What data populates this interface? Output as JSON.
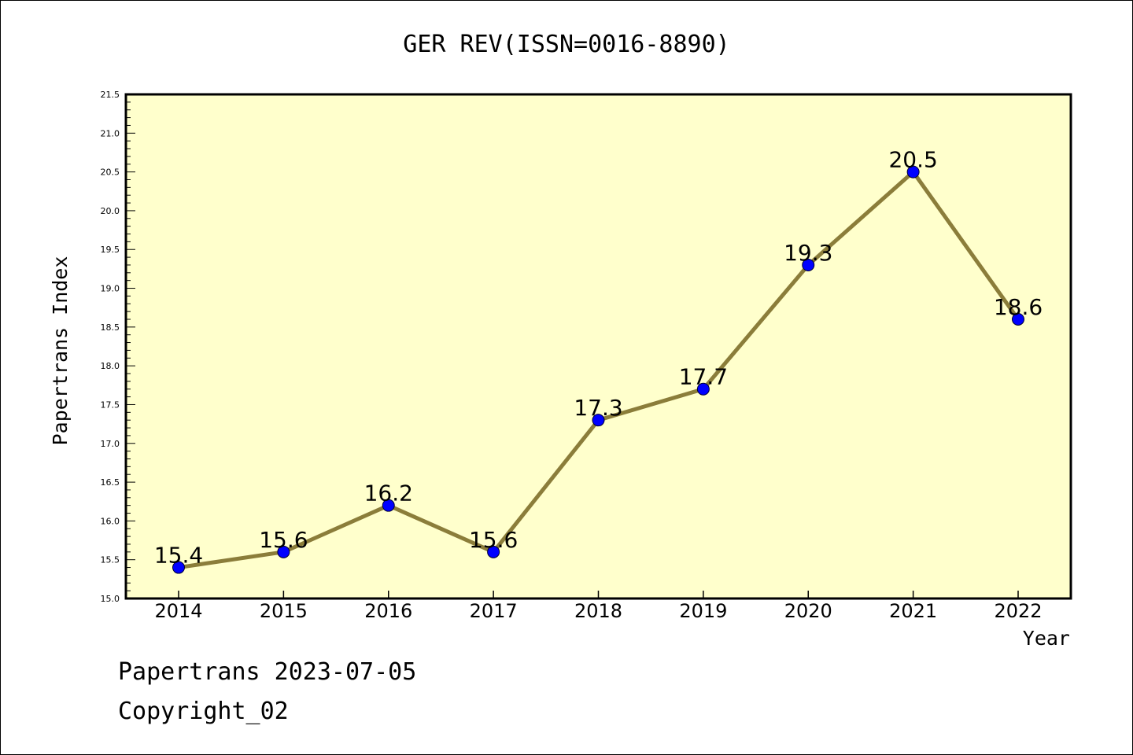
{
  "chart_data": {
    "type": "line",
    "title": "GER REV(ISSN=0016-8890)",
    "xlabel": "Year",
    "ylabel": "Papertrans Index",
    "x": [
      "2014",
      "2015",
      "2016",
      "2017",
      "2018",
      "2019",
      "2020",
      "2021",
      "2022"
    ],
    "series": [
      {
        "values": [
          15.4,
          15.6,
          16.2,
          15.6,
          17.3,
          17.7,
          19.3,
          20.5,
          18.6
        ],
        "labels": [
          "15.4",
          "15.6",
          "16.2",
          "15.6",
          "17.3",
          "17.7",
          "19.3",
          "20.5",
          "18.6"
        ]
      }
    ],
    "ylim": [
      15.0,
      21.5
    ],
    "yticks": [
      "15.0",
      "15.5",
      "16.0",
      "16.5",
      "17.0",
      "17.5",
      "18.0",
      "18.5",
      "19.0",
      "19.5",
      "20.0",
      "20.5",
      "21.0",
      "21.5"
    ],
    "grid": false,
    "colors": {
      "plot_background": "#ffffcc",
      "line": "#8b7d3a",
      "marker": "#0000ff"
    }
  },
  "footer": {
    "line1": "Papertrans 2023-07-05",
    "line2": "Copyright_02"
  }
}
